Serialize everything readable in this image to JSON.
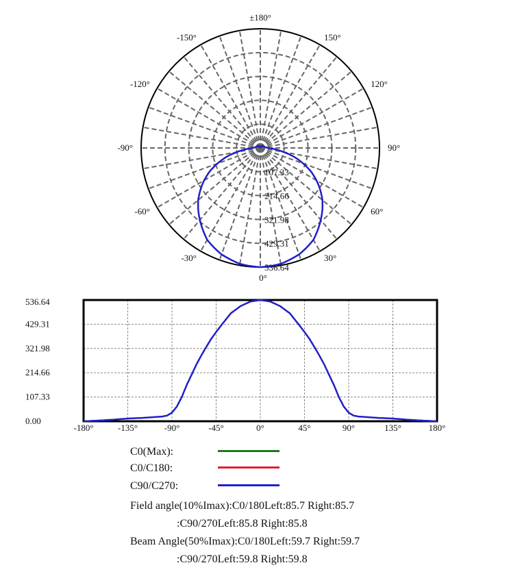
{
  "chart_data": [
    {
      "type": "polar",
      "angle_labels": [
        {
          "angle": 180,
          "text": "±180°"
        },
        {
          "angle": -150,
          "text": "-150°"
        },
        {
          "angle": 150,
          "text": "150°"
        },
        {
          "angle": -120,
          "text": "-120°"
        },
        {
          "angle": 120,
          "text": "120°"
        },
        {
          "angle": -90,
          "text": "-90°"
        },
        {
          "angle": 90,
          "text": "90°"
        },
        {
          "angle": -60,
          "text": "-60°"
        },
        {
          "angle": 60,
          "text": "60°"
        },
        {
          "angle": -30,
          "text": "-30°"
        },
        {
          "angle": 30,
          "text": "30°"
        },
        {
          "angle": 0,
          "text": "0°"
        }
      ],
      "radial_ticks": [
        "107.33",
        "214.66",
        "321.98",
        "429.31",
        "536.64"
      ],
      "rmax": 536.64,
      "spoke_step_deg": 10,
      "grid": true
    },
    {
      "type": "line",
      "xlim": [
        -180,
        180
      ],
      "ylim": [
        0,
        536.64
      ],
      "x_ticks": [
        "-180°",
        "-135°",
        "-90°",
        "-45°",
        "0°",
        "45°",
        "90°",
        "135°",
        "180°"
      ],
      "x_tick_values": [
        -180,
        -135,
        -90,
        -45,
        0,
        45,
        90,
        135,
        180
      ],
      "y_ticks": [
        "0.00",
        "107.33",
        "214.66",
        "321.98",
        "429.31",
        "536.64"
      ],
      "grid": true
    }
  ],
  "series": [
    {
      "name": "C0/C180",
      "color": "#e02030"
    },
    {
      "name": "C90/C270",
      "color": "#2020c8"
    }
  ],
  "intensity": {
    "angles": [
      0,
      10,
      20,
      30,
      39,
      45,
      50,
      56,
      60,
      65,
      69,
      75,
      80,
      85,
      90,
      95,
      100,
      110,
      120,
      135,
      150,
      165,
      180
    ],
    "values": [
      536.64,
      530,
      510,
      478,
      429,
      395,
      365,
      322,
      292,
      252,
      215,
      160,
      107,
      65,
      38,
      25,
      21,
      18,
      15,
      12,
      7,
      3,
      0
    ]
  },
  "legend": [
    {
      "label": "C0(Max):",
      "color": "#1e7a1e"
    },
    {
      "label": "C0/C180:",
      "color": "#e02030"
    },
    {
      "label": "C90/C270:",
      "color": "#2020c8"
    }
  ],
  "info": [
    "Field angle(10%Imax):C0/180Left:85.7 Right:85.7",
    ":C90/270Left:85.8 Right:85.8",
    "Beam Angle(50%Imax):C0/180Left:59.7 Right:59.7",
    ":C90/270Left:59.8 Right:59.8"
  ]
}
